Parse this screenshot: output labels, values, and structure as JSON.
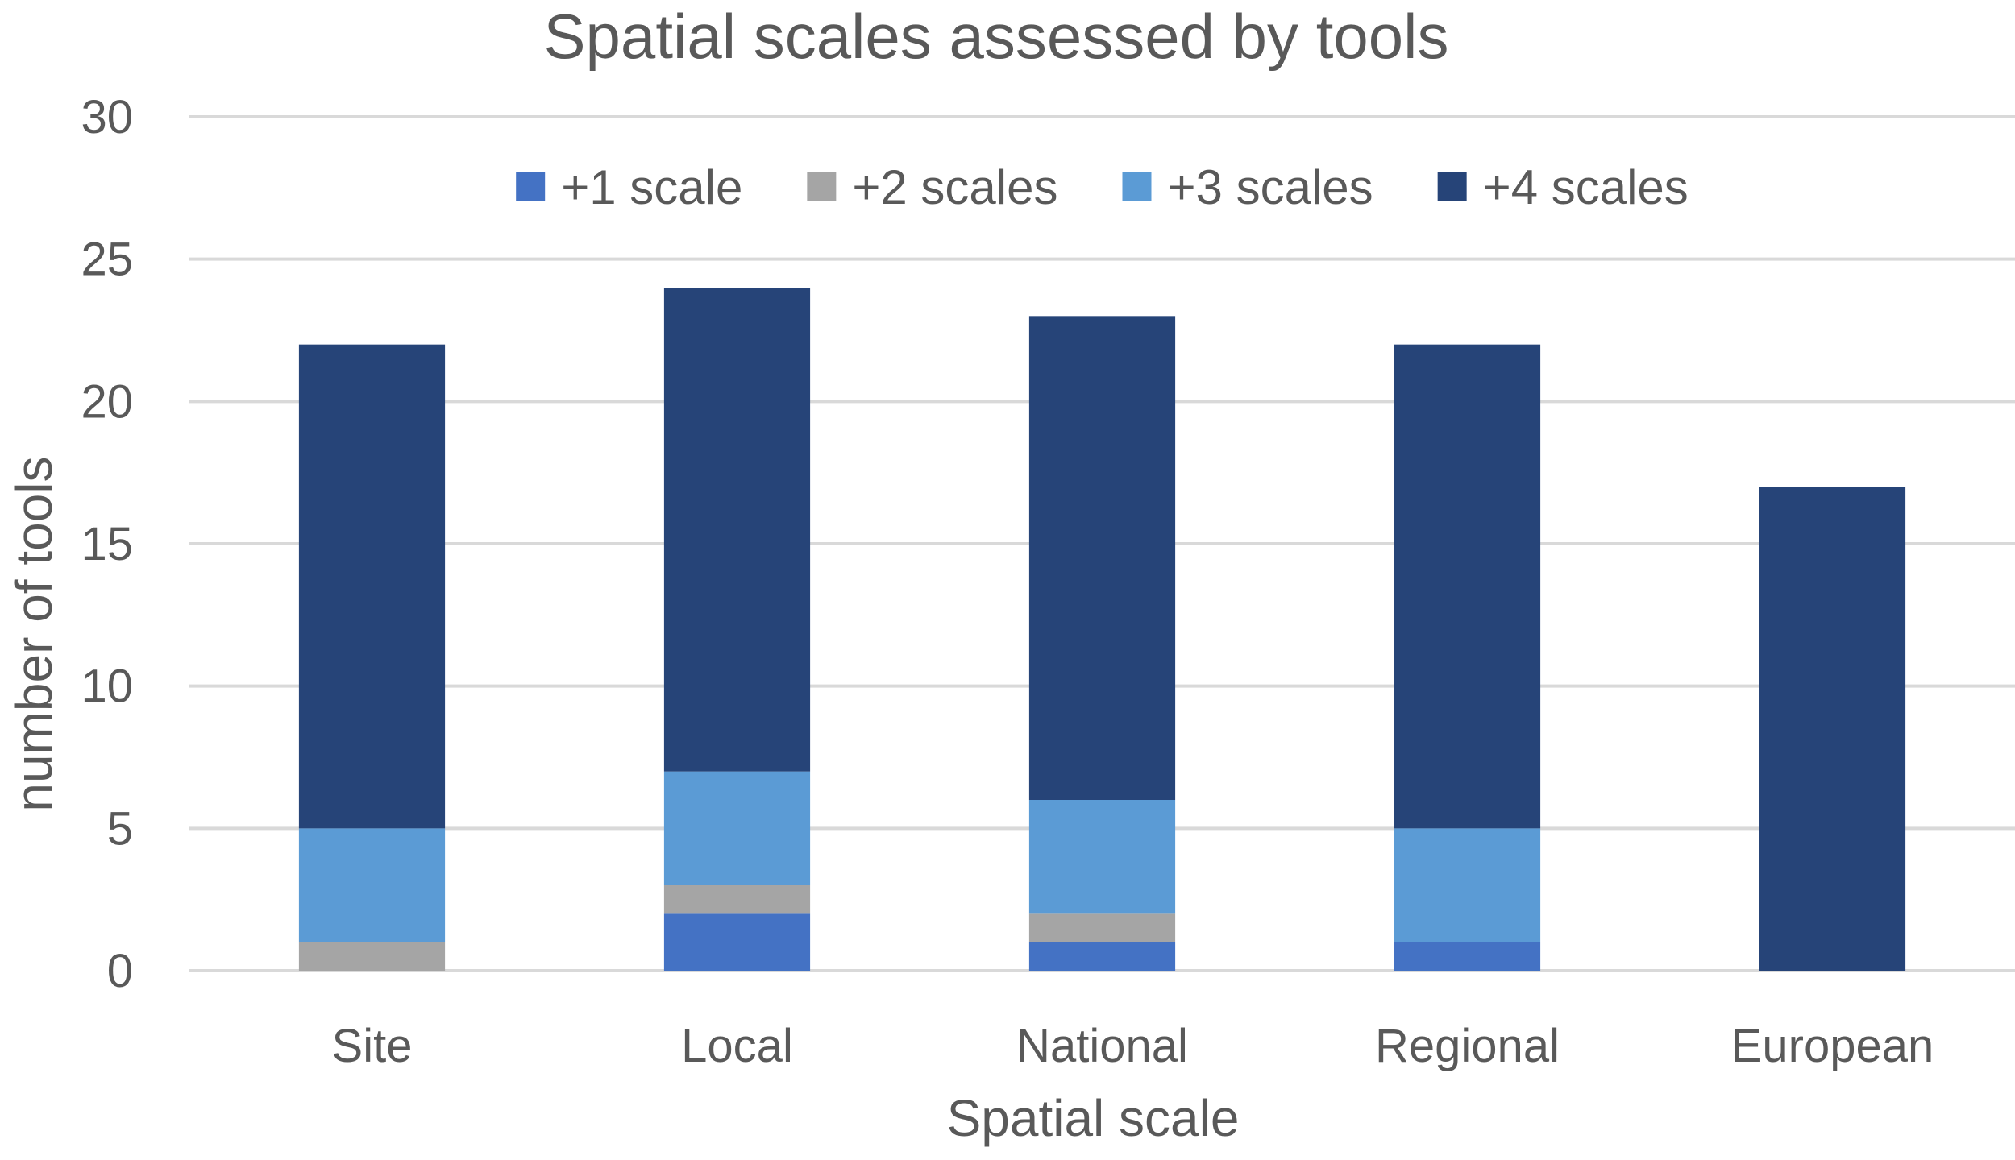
{
  "chart_data": {
    "type": "bar",
    "stacked": true,
    "title": "Spatial scales assessed by  tools",
    "xlabel": "Spatial scale",
    "ylabel": "number of tools",
    "ylim": [
      0,
      30
    ],
    "yticks": [
      0,
      5,
      10,
      15,
      20,
      25,
      30
    ],
    "grid": true,
    "legend_position": "top",
    "categories": [
      "Site",
      "Local",
      "National",
      "Regional",
      "European"
    ],
    "series": [
      {
        "name": "+1 scale",
        "color": "#4472c4",
        "values": [
          0,
          2,
          1,
          1,
          0
        ]
      },
      {
        "name": "+2 scales",
        "color": "#a5a5a5",
        "values": [
          1,
          1,
          1,
          0,
          0
        ]
      },
      {
        "name": "+3 scales",
        "color": "#5b9bd5",
        "values": [
          4,
          4,
          4,
          4,
          0
        ]
      },
      {
        "name": "+4 scales",
        "color": "#264478",
        "values": [
          17,
          17,
          17,
          17,
          17
        ]
      }
    ]
  }
}
